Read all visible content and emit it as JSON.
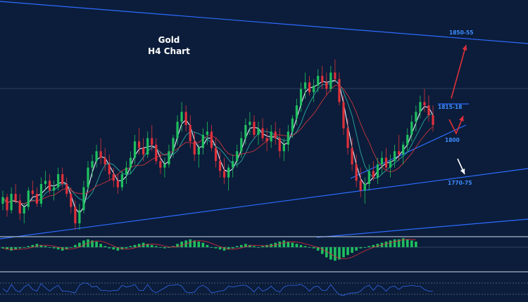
{
  "chart_data": {
    "type": "candlestick",
    "title": "Gold",
    "subtitle": "H4 Chart",
    "colors": {
      "background": "#0b1d3a",
      "bull": "#1fbf5f",
      "bear": "#e0303a",
      "trendline": "#2e6bff",
      "level_text": "#3f8cff",
      "ma_fast": "#e8eef8",
      "ma_mid": "#2aa8a0",
      "ma_slow": "#c8343c",
      "arrow_up": "#e0303a",
      "arrow_down": "#ffffff",
      "oscillator": "#2f5fd8"
    },
    "candles": [
      [
        30,
        38,
        26,
        34
      ],
      [
        34,
        36,
        22,
        26
      ],
      [
        26,
        40,
        24,
        36
      ],
      [
        36,
        42,
        30,
        32
      ],
      [
        32,
        36,
        20,
        24
      ],
      [
        24,
        30,
        18,
        28
      ],
      [
        28,
        40,
        26,
        38
      ],
      [
        38,
        44,
        34,
        36
      ],
      [
        36,
        40,
        28,
        30
      ],
      [
        30,
        46,
        28,
        42
      ],
      [
        42,
        50,
        38,
        44
      ],
      [
        44,
        48,
        36,
        38
      ],
      [
        38,
        44,
        32,
        40
      ],
      [
        40,
        52,
        38,
        48
      ],
      [
        48,
        52,
        40,
        42
      ],
      [
        42,
        46,
        34,
        36
      ],
      [
        36,
        40,
        24,
        28
      ],
      [
        28,
        32,
        14,
        18
      ],
      [
        18,
        30,
        14,
        26
      ],
      [
        26,
        44,
        24,
        40
      ],
      [
        40,
        56,
        38,
        52
      ],
      [
        52,
        60,
        46,
        56
      ],
      [
        56,
        66,
        52,
        62
      ],
      [
        62,
        70,
        54,
        58
      ],
      [
        58,
        64,
        50,
        54
      ],
      [
        54,
        60,
        44,
        48
      ],
      [
        48,
        52,
        40,
        44
      ],
      [
        44,
        48,
        36,
        40
      ],
      [
        40,
        50,
        38,
        48
      ],
      [
        48,
        56,
        42,
        52
      ],
      [
        52,
        62,
        48,
        58
      ],
      [
        58,
        72,
        54,
        68
      ],
      [
        68,
        76,
        60,
        64
      ],
      [
        64,
        70,
        56,
        60
      ],
      [
        60,
        74,
        58,
        70
      ],
      [
        70,
        78,
        62,
        66
      ],
      [
        66,
        70,
        54,
        56
      ],
      [
        56,
        62,
        48,
        52
      ],
      [
        52,
        58,
        46,
        54
      ],
      [
        54,
        66,
        52,
        62
      ],
      [
        62,
        72,
        58,
        70
      ],
      [
        70,
        84,
        66,
        80
      ],
      [
        80,
        92,
        74,
        86
      ],
      [
        86,
        90,
        74,
        78
      ],
      [
        78,
        84,
        64,
        68
      ],
      [
        68,
        74,
        56,
        60
      ],
      [
        60,
        66,
        52,
        64
      ],
      [
        64,
        76,
        60,
        72
      ],
      [
        72,
        80,
        66,
        74
      ],
      [
        74,
        78,
        62,
        64
      ],
      [
        64,
        70,
        52,
        56
      ],
      [
        56,
        62,
        46,
        50
      ],
      [
        50,
        58,
        42,
        46
      ],
      [
        46,
        54,
        38,
        52
      ],
      [
        52,
        60,
        46,
        56
      ],
      [
        56,
        66,
        52,
        62
      ],
      [
        62,
        74,
        58,
        70
      ],
      [
        70,
        82,
        66,
        78
      ],
      [
        78,
        86,
        72,
        80
      ],
      [
        80,
        84,
        70,
        72
      ],
      [
        72,
        80,
        66,
        76
      ],
      [
        76,
        82,
        68,
        70
      ],
      [
        70,
        76,
        62,
        68
      ],
      [
        68,
        78,
        64,
        74
      ],
      [
        74,
        80,
        66,
        70
      ],
      [
        70,
        76,
        58,
        62
      ],
      [
        62,
        70,
        56,
        66
      ],
      [
        66,
        78,
        62,
        74
      ],
      [
        74,
        84,
        70,
        82
      ],
      [
        82,
        94,
        78,
        90
      ],
      [
        90,
        104,
        86,
        100
      ],
      [
        100,
        110,
        94,
        104
      ],
      [
        104,
        108,
        96,
        98
      ],
      [
        98,
        106,
        92,
        102
      ],
      [
        102,
        112,
        98,
        108
      ],
      [
        108,
        114,
        100,
        104
      ],
      [
        104,
        110,
        96,
        100
      ],
      [
        100,
        114,
        98,
        110
      ],
      [
        110,
        118,
        104,
        106
      ],
      [
        106,
        110,
        90,
        92
      ],
      [
        92,
        96,
        72,
        76
      ],
      [
        76,
        82,
        60,
        64
      ],
      [
        64,
        70,
        50,
        54
      ],
      [
        54,
        60,
        40,
        44
      ],
      [
        44,
        52,
        34,
        38
      ],
      [
        38,
        46,
        30,
        42
      ],
      [
        42,
        54,
        38,
        50
      ],
      [
        50,
        56,
        44,
        46
      ],
      [
        46,
        58,
        42,
        54
      ],
      [
        54,
        62,
        48,
        58
      ],
      [
        58,
        64,
        50,
        52
      ],
      [
        52,
        60,
        46,
        56
      ],
      [
        56,
        66,
        52,
        62
      ],
      [
        62,
        72,
        56,
        60
      ],
      [
        60,
        68,
        54,
        66
      ],
      [
        66,
        76,
        62,
        72
      ],
      [
        72,
        84,
        68,
        80
      ],
      [
        80,
        90,
        74,
        86
      ],
      [
        86,
        96,
        82,
        92
      ],
      [
        92,
        100,
        86,
        90
      ],
      [
        90,
        96,
        80,
        84
      ],
      [
        84,
        90,
        74,
        78
      ]
    ],
    "levels": [
      {
        "label": "1850-55"
      },
      {
        "label": "1815-18"
      },
      {
        "label": "1800"
      },
      {
        "label": "1770-75"
      }
    ],
    "histogram": [
      -1,
      -2,
      -3,
      -2,
      -1,
      0,
      1,
      2,
      3,
      2,
      1,
      0,
      -1,
      -2,
      -3,
      -2,
      0,
      2,
      4,
      6,
      7,
      6,
      5,
      3,
      1,
      -1,
      -2,
      -3,
      -2,
      -1,
      1,
      2,
      3,
      4,
      3,
      2,
      1,
      0,
      -1,
      0,
      1,
      3,
      5,
      6,
      7,
      6,
      5,
      4,
      2,
      0,
      -1,
      -2,
      -3,
      -2,
      -1,
      1,
      2,
      3,
      2,
      1,
      0,
      1,
      2,
      3,
      4,
      5,
      6,
      5,
      4,
      3,
      2,
      1,
      0,
      -1,
      -3,
      -6,
      -9,
      -11,
      -12,
      -11,
      -9,
      -7,
      -5,
      -3,
      -1,
      0,
      1,
      2,
      3,
      4,
      5,
      6,
      7,
      7,
      8,
      7,
      6,
      5
    ]
  }
}
